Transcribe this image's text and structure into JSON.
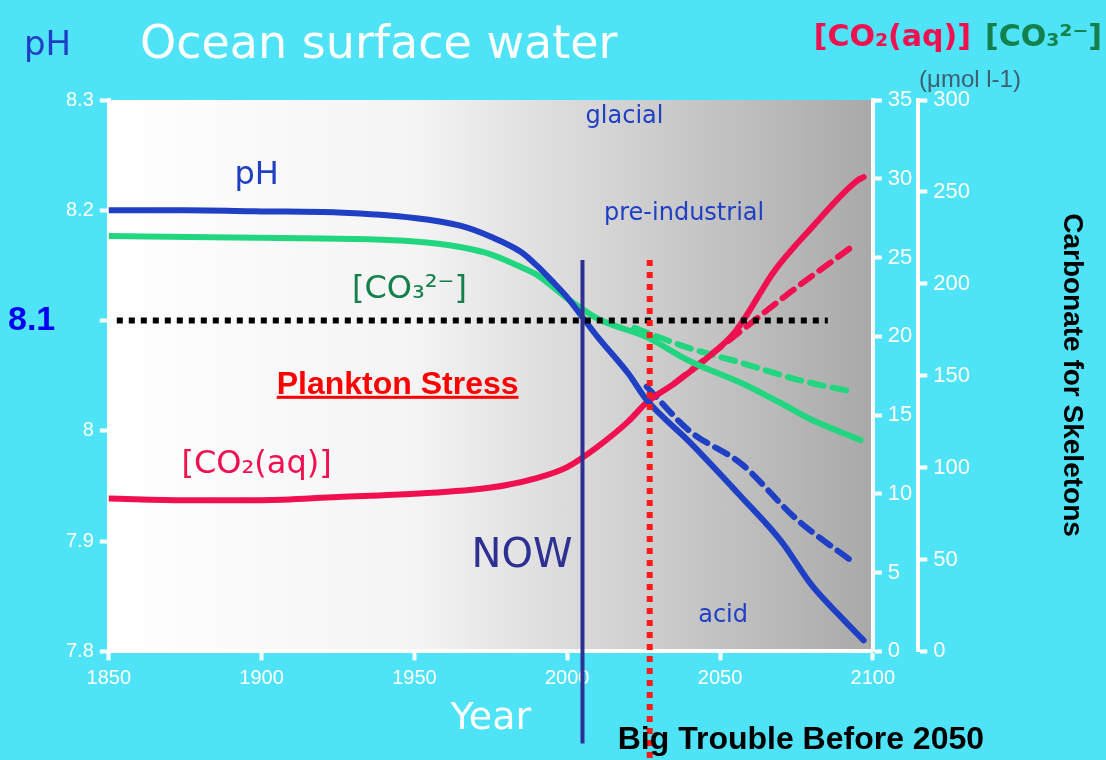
{
  "chart_data": {
    "type": "line",
    "title": "Ocean surface water",
    "xlabel": "Year",
    "ylabel": "pH",
    "y2label": "[CO₂(aq)]",
    "y3label": "[CO₃²⁻]",
    "xlim": [
      1850,
      2100
    ],
    "xticks": [
      1850,
      1900,
      1950,
      2000,
      2050,
      2100
    ],
    "ylim": [
      7.8,
      8.3
    ],
    "yticks": [
      7.8,
      7.9,
      8.0,
      {
        "value": 8.1,
        "label": null
      },
      8.2,
      8.3
    ],
    "y2lim": [
      0,
      35
    ],
    "y2ticks": [
      0,
      5,
      10,
      15,
      20,
      25,
      30,
      35
    ],
    "y3lim": [
      0,
      300
    ],
    "y3ticks": [
      0,
      50,
      100,
      150,
      200,
      250,
      300
    ],
    "series": [
      {
        "name": "pH",
        "color": "#1f3fc4",
        "line_style": "solid",
        "x": [
          1850,
          1875,
          1900,
          1925,
          1950,
          1965,
          1975,
          1985,
          1990,
          1995,
          2000,
          2005,
          2010,
          2020,
          2026,
          2040,
          2057,
          2070,
          2080,
          2090,
          2097
        ],
        "values": [
          8.2,
          8.2,
          8.199,
          8.198,
          8.193,
          8.186,
          8.176,
          8.162,
          8.15,
          8.136,
          8.121,
          8.103,
          8.085,
          8.052,
          8.028,
          7.99,
          7.94,
          7.9,
          7.86,
          7.83,
          7.81
        ]
      },
      {
        "name": "[CO₃²⁻]",
        "color": "#22d67f",
        "axis": "y3",
        "line_style": "solid",
        "x": [
          1850,
          1900,
          1950,
          1965,
          1975,
          1985,
          1990,
          2000,
          2010,
          2026,
          2040,
          2057,
          2070,
          2080,
          2090,
          2096
        ],
        "values": [
          226,
          225,
          223,
          220,
          216,
          209,
          205,
          192,
          181,
          171,
          158,
          146,
          135,
          126,
          119,
          115
        ]
      },
      {
        "name": "[CO₂(aq)]",
        "color": "#f0104f",
        "axis": "y2",
        "line_style": "solid",
        "x": [
          1850,
          1875,
          1900,
          1925,
          1950,
          1975,
          1990,
          2000,
          2010,
          2020,
          2026,
          2035,
          2045,
          2055,
          2068,
          2080,
          2095,
          2097
        ],
        "values": [
          9.7,
          9.6,
          9.6,
          9.8,
          10.0,
          10.4,
          11.0,
          11.7,
          13.0,
          14.6,
          15.8,
          17.0,
          18.5,
          20.3,
          24.2,
          26.9,
          29.9,
          30.1
        ]
      },
      {
        "color": "#1f3fc4",
        "line_style": "dashed",
        "x": [
          2026,
          2040,
          2057,
          2075,
          2094
        ],
        "values": [
          8.04,
          8.0,
          7.97,
          7.92,
          7.88
        ]
      },
      {
        "color": "#22d67f",
        "axis": "y3",
        "line_style": "dashed",
        "x": [
          2022,
          2040,
          2057,
          2075,
          2094
        ],
        "values": [
          176,
          165,
          157,
          148,
          141
        ]
      },
      {
        "color": "#f0104f",
        "axis": "y2",
        "line_style": "dashed",
        "x": [
          2035,
          2054,
          2073,
          2094
        ],
        "values": [
          17.0,
          19.9,
          22.8,
          25.8
        ]
      }
    ],
    "ref_lines": [
      {
        "axis": "y",
        "value": 8.1,
        "label": "8.1",
        "color": "#000000",
        "line_style": "dotted"
      },
      {
        "axis": "x",
        "value": 2005,
        "label": "NOW",
        "color": "#2e3192",
        "line_style": "solid"
      },
      {
        "axis": "x",
        "value": 2027,
        "label": "Big Trouble Before 2050",
        "color": "#ff1a1a",
        "line_style": "dotted"
      }
    ],
    "annotations": [
      "glacial",
      "pre-industrial",
      "acid",
      "Plankton Stress",
      "(μmol l-1)",
      "Carbonate for Skeletons"
    ]
  }
}
